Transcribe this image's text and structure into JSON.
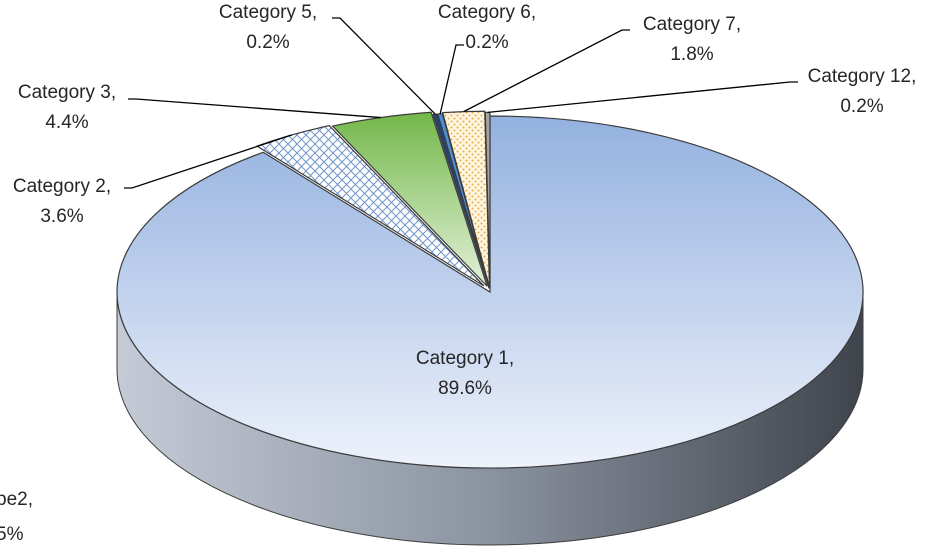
{
  "chart_data": {
    "type": "pie",
    "style": "3d-exploded",
    "title": "",
    "slices": [
      {
        "category": "Category 1",
        "value": 89.6,
        "value_label": "89.6%",
        "label_line1": "Category 1,",
        "label_line2": "89.6%",
        "color": "#b8c9e8",
        "pattern": "gradient-blue"
      },
      {
        "category": "Category 2",
        "value": 3.6,
        "value_label": "3.6%",
        "label_line1": "Category 2,",
        "label_line2": "3.6%",
        "color": "#5b9bd5",
        "pattern": "crosshatch"
      },
      {
        "category": "Category 3",
        "value": 4.4,
        "value_label": "4.4%",
        "label_line1": "Category 3,",
        "label_line2": "4.4%",
        "color": "#70ad47",
        "pattern": "gradient-green"
      },
      {
        "category": "Category 5",
        "value": 0.2,
        "value_label": "0.2%",
        "label_line1": "Category 5,",
        "label_line2": "0.2%",
        "color": "#264478",
        "pattern": "solid"
      },
      {
        "category": "Category 6",
        "value": 0.2,
        "value_label": "0.2%",
        "label_line1": "Category 6,",
        "label_line2": "0.2%",
        "color": "#4e8fd1",
        "pattern": "solid"
      },
      {
        "category": "Category 7",
        "value": 1.8,
        "value_label": "1.8%",
        "label_line1": "Category 7,",
        "label_line2": "1.8%",
        "color": "#f4c77a",
        "pattern": "dots"
      },
      {
        "category": "Category 12",
        "value": 0.2,
        "value_label": "0.2%",
        "label_line1": "Category 12,",
        "label_line2": "0.2%",
        "color": "#a5a5a5",
        "pattern": "solid"
      }
    ],
    "partial_label": {
      "label_line1": "pe2,",
      "label_line2": "5%"
    }
  }
}
